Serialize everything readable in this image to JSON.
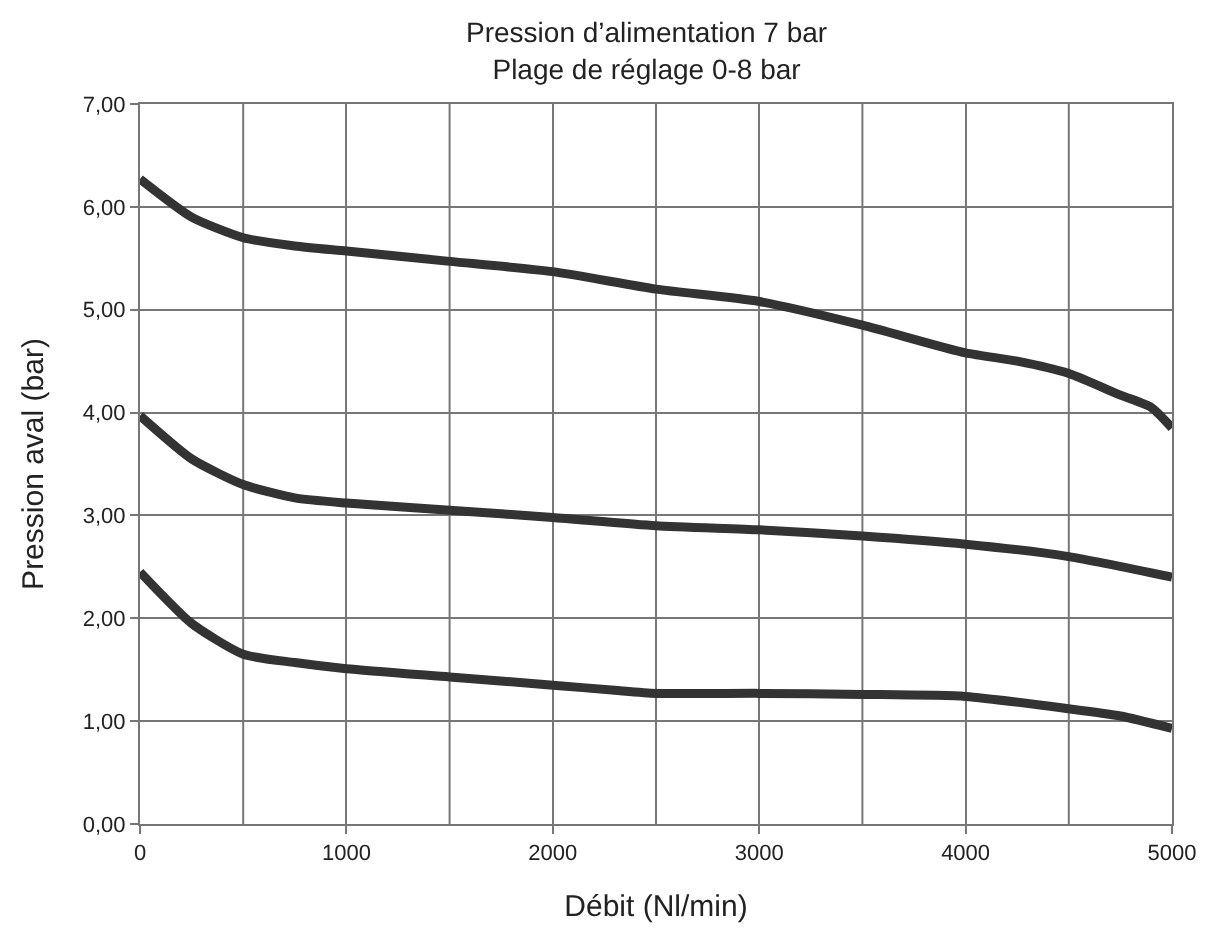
{
  "chart_data": {
    "type": "line",
    "title": "Pression d’alimentation 7 bar",
    "subtitle": "Plage de réglage 0-8 bar",
    "xlabel": "Débit (Nl/min)",
    "ylabel": "Pression aval (bar)",
    "xlim": [
      0,
      5000
    ],
    "xticks": [
      0,
      1000,
      2000,
      3000,
      4000,
      5000
    ],
    "ylim": [
      0,
      7
    ],
    "yticks": [
      {
        "value": 0,
        "label": "0,00"
      },
      {
        "value": 1,
        "label": "1,00"
      },
      {
        "value": 2,
        "label": "2,00"
      },
      {
        "value": 3,
        "label": "3,00"
      },
      {
        "value": 4,
        "label": "4,00"
      },
      {
        "value": 5,
        "label": "5,00"
      },
      {
        "value": 6,
        "label": "6,00"
      },
      {
        "value": 7,
        "label": "7,00"
      }
    ],
    "grid": true,
    "marker": "none",
    "line_style": "solid",
    "series": [
      {
        "color": "#333333",
        "x": [
          0,
          250,
          500,
          750,
          1000,
          1500,
          2000,
          2500,
          3000,
          3500,
          4000,
          4250,
          4500,
          4750,
          4900,
          5000
        ],
        "values": [
          6.27,
          5.9,
          5.7,
          5.62,
          5.57,
          5.47,
          5.37,
          5.2,
          5.08,
          4.85,
          4.58,
          4.5,
          4.38,
          4.17,
          4.05,
          3.85
        ]
      },
      {
        "color": "#333333",
        "x": [
          0,
          250,
          500,
          750,
          1000,
          1500,
          2000,
          2500,
          3000,
          3500,
          4000,
          4500,
          5000
        ],
        "values": [
          3.97,
          3.55,
          3.3,
          3.17,
          3.12,
          3.05,
          2.98,
          2.9,
          2.86,
          2.8,
          2.72,
          2.6,
          2.4
        ]
      },
      {
        "color": "#333333",
        "x": [
          0,
          250,
          500,
          750,
          1000,
          1500,
          2000,
          2300,
          2500,
          3000,
          3500,
          4000,
          4500,
          4750,
          5000
        ],
        "values": [
          2.45,
          1.95,
          1.65,
          1.57,
          1.51,
          1.43,
          1.35,
          1.3,
          1.27,
          1.27,
          1.26,
          1.24,
          1.12,
          1.05,
          0.93
        ]
      }
    ]
  }
}
